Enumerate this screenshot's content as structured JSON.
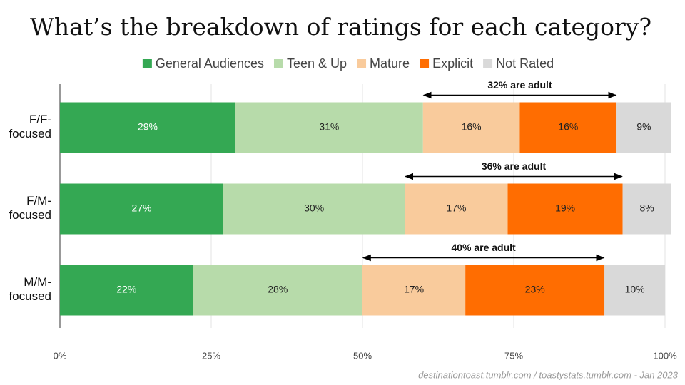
{
  "chart_data": {
    "type": "stacked-bar-horizontal",
    "title": "What’s the breakdown of ratings for each category?",
    "categories": [
      "F/F-\nfocused",
      "F/M-\nfocused",
      "M/M-\nfocused"
    ],
    "series": [
      {
        "name": "General Audiences",
        "color": "#34a853",
        "label_color": "#ffffff",
        "values": [
          29,
          27,
          22
        ],
        "value_labels": [
          "29%",
          "27%",
          "22%"
        ]
      },
      {
        "name": "Teen & Up",
        "color": "#b7dbaa",
        "label_color": "#222222",
        "values": [
          31,
          30,
          28
        ],
        "value_labels": [
          "31%",
          "30%",
          "28%"
        ]
      },
      {
        "name": "Mature",
        "color": "#f9cb9c",
        "label_color": "#222222",
        "values": [
          16,
          17,
          17
        ],
        "value_labels": [
          "16%",
          "17%",
          "17%"
        ]
      },
      {
        "name": "Explicit",
        "color": "#ff6d01",
        "label_color": "#222222",
        "values": [
          16,
          19,
          23
        ],
        "value_labels": [
          "16%",
          "19%",
          "23%"
        ]
      },
      {
        "name": "Not Rated",
        "color": "#d9d9d9",
        "label_color": "#222222",
        "values": [
          9,
          8,
          10
        ],
        "value_labels": [
          "9%",
          "8%",
          "10%"
        ]
      }
    ],
    "annotations": [
      "32% are adult",
      "36% are adult",
      "40% are adult"
    ],
    "xlim": [
      0,
      100
    ],
    "xticks": [
      {
        "value": 0,
        "label": "0%"
      },
      {
        "value": 25,
        "label": "25%"
      },
      {
        "value": 50,
        "label": "50%"
      },
      {
        "value": 75,
        "label": "75%"
      },
      {
        "value": 100,
        "label": "100%"
      }
    ],
    "grid": true,
    "legend": "top",
    "source": "destinationtoast.tumblr.com / toastystats.tumblr.com - Jan 2023"
  }
}
